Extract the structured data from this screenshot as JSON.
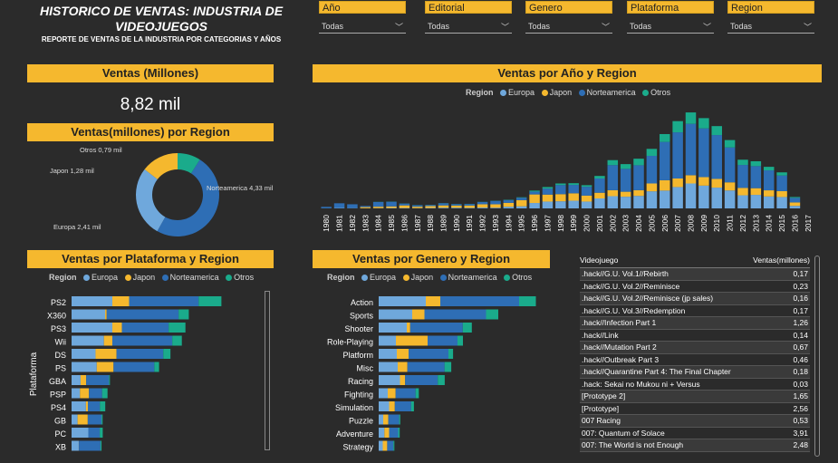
{
  "header": {
    "title": "HISTORICO DE VENTAS: INDUSTRIA DE VIDEOJUEGOS",
    "subtitle": "REPORTE DE VENTAS DE LA INDUSTRIA POR CATEGORIAS Y AÑOS"
  },
  "filters": [
    {
      "label": "Año",
      "value": "Todas"
    },
    {
      "label": "Editorial",
      "value": "Todas"
    },
    {
      "label": "Genero",
      "value": "Todas"
    },
    {
      "label": "Plataforma",
      "value": "Todas"
    },
    {
      "label": "Region",
      "value": "Todas"
    }
  ],
  "colors": {
    "europa": "#6fa8dc",
    "japon": "#f5b82e",
    "norteamerica": "#2e6eb5",
    "otros": "#1aab8b"
  },
  "legend": {
    "title": "Region",
    "items": [
      "Europa",
      "Japon",
      "Norteamerica",
      "Otros"
    ]
  },
  "kpi": {
    "title": "Ventas (Millones)",
    "value": "8,82 mil"
  },
  "donut": {
    "title": "Ventas(millones) por Region",
    "labels": [
      "Norteamerica 4,33 mil",
      "Europa 2,41 mil",
      "Japon 1,28 mil",
      "Otros 0,79 mil"
    ]
  },
  "year_chart_title": "Ventas por Año y Region",
  "platform_chart": {
    "title": "Ventas por Plataforma y Region",
    "axis_label": "Plataforma"
  },
  "genre_chart_title": "Ventas por Genero y Region",
  "table": {
    "headers": [
      "Videojuego",
      "Ventas(millones)"
    ],
    "rows": [
      [
        ".hack//G.U. Vol.1//Rebirth",
        "0,17"
      ],
      [
        ".hack//G.U. Vol.2//Reminisce",
        "0,23"
      ],
      [
        ".hack//G.U. Vol.2//Reminisce (jp sales)",
        "0,16"
      ],
      [
        ".hack//G.U. Vol.3//Redemption",
        "0,17"
      ],
      [
        ".hack//Infection Part 1",
        "1,26"
      ],
      [
        ".hack//Link",
        "0,14"
      ],
      [
        ".hack//Mutation Part 2",
        "0,67"
      ],
      [
        ".hack//Outbreak Part 3",
        "0,46"
      ],
      [
        ".hack//Quarantine Part 4: The Final Chapter",
        "0,18"
      ],
      [
        ".hack: Sekai no Mukou ni + Versus",
        "0,03"
      ],
      [
        "[Prototype 2]",
        "1,65"
      ],
      [
        "[Prototype]",
        "2,56"
      ],
      [
        "007 Racing",
        "0,53"
      ],
      [
        "007: Quantum of Solace",
        "3,91"
      ],
      [
        "007: The World is not Enough",
        "2,48"
      ]
    ]
  },
  "chart_data": [
    {
      "type": "pie",
      "title": "Ventas(millones) por Region",
      "categories": [
        "Norteamerica",
        "Europa",
        "Japon",
        "Otros"
      ],
      "values": [
        4330,
        2410,
        1280,
        790
      ]
    },
    {
      "type": "bar",
      "title": "Ventas por Año y Region",
      "categories": [
        "1980",
        "1981",
        "1982",
        "1983",
        "1984",
        "1985",
        "1986",
        "1987",
        "1988",
        "1989",
        "1990",
        "1991",
        "1992",
        "1993",
        "1994",
        "1995",
        "1996",
        "1997",
        "1998",
        "1999",
        "2000",
        "2001",
        "2002",
        "2003",
        "2004",
        "2005",
        "2006",
        "2007",
        "2008",
        "2009",
        "2010",
        "2011",
        "2012",
        "2013",
        "2014",
        "2015",
        "2016",
        "2017"
      ],
      "series": [
        {
          "name": "Europa",
          "values": [
            1,
            3,
            2,
            1,
            2,
            3,
            3,
            2,
            3,
            5,
            5,
            4,
            6,
            5,
            12,
            15,
            38,
            48,
            50,
            54,
            48,
            70,
            86,
            82,
            88,
            120,
            125,
            150,
            175,
            160,
            146,
            126,
            92,
            95,
            84,
            80,
            18,
            0
          ]
        },
        {
          "name": "Japon",
          "values": [
            0,
            0,
            0,
            8,
            10,
            11,
            18,
            10,
            13,
            16,
            15,
            16,
            23,
            24,
            27,
            43,
            60,
            49,
            50,
            52,
            42,
            40,
            42,
            35,
            40,
            55,
            73,
            60,
            58,
            60,
            61,
            57,
            52,
            47,
            43,
            41,
            24,
            0
          ]
        },
        {
          "name": "Norteamerica",
          "values": [
            10,
            33,
            27,
            8,
            33,
            33,
            13,
            10,
            8,
            15,
            10,
            11,
            16,
            24,
            20,
            17,
            20,
            42,
            64,
            59,
            62,
            100,
            176,
            161,
            175,
            194,
            269,
            324,
            361,
            342,
            308,
            245,
            161,
            155,
            140,
            110,
            32,
            0
          ]
        },
        {
          "name": "Otros",
          "values": [
            0,
            0,
            0,
            0,
            1,
            1,
            1,
            1,
            1,
            1,
            1,
            1,
            1,
            1,
            2,
            3,
            7,
            11,
            11,
            12,
            11,
            18,
            35,
            33,
            46,
            49,
            55,
            79,
            80,
            72,
            63,
            52,
            37,
            34,
            25,
            22,
            6,
            0
          ]
        }
      ],
      "ylim": [
        0,
        700
      ]
    },
    {
      "type": "bar",
      "title": "Ventas por Plataforma y Region",
      "categories": [
        "PS2",
        "X360",
        "PS3",
        "Wii",
        "DS",
        "PS",
        "GBA",
        "PSP",
        "PS4",
        "GB",
        "PC",
        "XB"
      ],
      "series": [
        {
          "name": "Europa",
          "values": [
            340,
            280,
            340,
            270,
            200,
            210,
            75,
            70,
            120,
            50,
            140,
            60
          ]
        },
        {
          "name": "Japon",
          "values": [
            140,
            13,
            80,
            70,
            175,
            140,
            47,
            75,
            16,
            85,
            0,
            1
          ]
        },
        {
          "name": "Norteamerica",
          "values": [
            580,
            600,
            390,
            500,
            390,
            340,
            190,
            110,
            100,
            115,
            95,
            180
          ]
        },
        {
          "name": "Otros",
          "values": [
            190,
            85,
            140,
            80,
            60,
            40,
            8,
            45,
            45,
            9,
            25,
            9
          ]
        }
      ],
      "xlim": [
        0,
        1300
      ]
    },
    {
      "type": "bar",
      "title": "Ventas por Genero y Region",
      "categories": [
        "Action",
        "Sports",
        "Shooter",
        "Role-Playing",
        "Platform",
        "Misc",
        "Racing",
        "Fighting",
        "Simulation",
        "Puzzle",
        "Adventure",
        "Strategy"
      ],
      "series": [
        {
          "name": "Europa",
          "values": [
            520,
            370,
            310,
            190,
            200,
            210,
            235,
            100,
            115,
            50,
            63,
            45
          ]
        },
        {
          "name": "Japon",
          "values": [
            160,
            135,
            38,
            350,
            130,
            107,
            57,
            87,
            63,
            56,
            52,
            49
          ]
        },
        {
          "name": "Norteamerica",
          "values": [
            870,
            680,
            580,
            330,
            440,
            410,
            360,
            220,
            180,
            120,
            100,
            68
          ]
        },
        {
          "name": "Otros",
          "values": [
            185,
            135,
            100,
            60,
            51,
            74,
            77,
            36,
            31,
            12,
            17,
            11
          ]
        }
      ],
      "xlim": [
        0,
        1800
      ]
    }
  ]
}
